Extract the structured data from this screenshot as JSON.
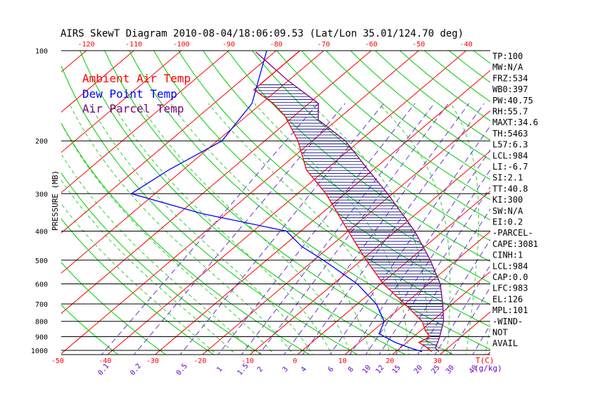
{
  "chart_data": {
    "type": "skewt",
    "title": "AIRS SkewT Diagram 2010-08-04/18:06:09.53 (Lat/Lon 35.01/124.70 deg)",
    "ylabel": "PRESSURE (MB)",
    "bottom_temp_unit": "T(C)",
    "mixing_ratio_unit": "(g/kg)",
    "pressure_levels": [
      100,
      200,
      300,
      400,
      500,
      600,
      700,
      800,
      900,
      1000
    ],
    "pressure_range": [
      100,
      1050
    ],
    "bottom_temp_ticks": [
      -50,
      -40,
      -30,
      -20,
      -10,
      0,
      10,
      20,
      30
    ],
    "top_temp_ticks": [
      -120,
      -110,
      -100,
      -90,
      -80,
      -70,
      -60,
      -50,
      -40
    ],
    "mixing_ratio_labels": [
      "0.1",
      "0.2",
      "0.5",
      "1",
      "1.5",
      "2",
      "3",
      "4",
      "6",
      "8",
      "10",
      "12",
      "15",
      "20",
      "25",
      "30",
      "40"
    ],
    "mixing_ratio_values": [
      0.1,
      0.2,
      0.5,
      1,
      1.5,
      2,
      3,
      4,
      6,
      8,
      10,
      12,
      15,
      20,
      25,
      30,
      40
    ],
    "legend": [
      {
        "label": "Ambient Air Temp",
        "color": "#ff0000"
      },
      {
        "label": "Dew Point Temp",
        "color": "#0000ff"
      },
      {
        "label": "Air Parcel Temp",
        "color": "#800080"
      }
    ],
    "series": [
      {
        "name": "Ambient Air Temp",
        "color": "#ff0000",
        "points": [
          [
            1010,
            27.5
          ],
          [
            985,
            26.0
          ],
          [
            940,
            22.5
          ],
          [
            900,
            23.5
          ],
          [
            860,
            21.0
          ],
          [
            800,
            18.0
          ],
          [
            700,
            10.0
          ],
          [
            600,
            0.5
          ],
          [
            500,
            -9.0
          ],
          [
            400,
            -20.0
          ],
          [
            300,
            -34.0
          ],
          [
            250,
            -44.0
          ],
          [
            200,
            -53.0
          ],
          [
            165,
            -62.0
          ],
          [
            150,
            -67.5
          ],
          [
            135,
            -75.0
          ],
          [
            100,
            -75.0
          ]
        ]
      },
      {
        "name": "Dew Point Temp",
        "color": "#0000ff",
        "points": [
          [
            1010,
            25.5
          ],
          [
            985,
            22.5
          ],
          [
            940,
            17.5
          ],
          [
            880,
            12.0
          ],
          [
            800,
            10.0
          ],
          [
            700,
            4.0
          ],
          [
            600,
            -5.0
          ],
          [
            500,
            -18.0
          ],
          [
            450,
            -26.0
          ],
          [
            400,
            -33.0
          ],
          [
            350,
            -55.0
          ],
          [
            300,
            -75.0
          ],
          [
            250,
            -73.0
          ],
          [
            200,
            -69.0
          ],
          [
            150,
            -72.0
          ],
          [
            100,
            -82.0
          ]
        ]
      },
      {
        "name": "Air Parcel Temp",
        "color": "#800080",
        "points": [
          [
            1010,
            29.0
          ],
          [
            984,
            27.5
          ],
          [
            900,
            25.5
          ],
          [
            800,
            22.5
          ],
          [
            700,
            18.0
          ],
          [
            600,
            12.5
          ],
          [
            500,
            4.5
          ],
          [
            400,
            -6.0
          ],
          [
            300,
            -21.0
          ],
          [
            250,
            -31.0
          ],
          [
            200,
            -43.0
          ],
          [
            170,
            -54.0
          ],
          [
            150,
            -58.0
          ],
          [
            126,
            -70.0
          ],
          [
            101,
            -84.0
          ]
        ]
      }
    ]
  },
  "stats": [
    "TP:100",
    "MW:N/A",
    "FRZ:534",
    "WB0:397",
    "PW:40.75",
    "RH:55.7",
    "MAXT:34.6",
    "TH:5463",
    "L57:6.3",
    "LCL:984",
    "LI:-6.7",
    "SI:2.1",
    "TT:40.8",
    "KI:300",
    "SW:N/A",
    "EI:0.2",
    "-PARCEL-",
    "CAPE:3081",
    "CINH:1",
    "LCL:984",
    "CAP:0.0",
    "LFC:983",
    "EL:126",
    "MPL:101",
    "-WIND-",
    "NOT",
    "AVAIL"
  ],
  "colors": {
    "isotherm": "#ff0000",
    "dry_adiabat": "#00cc00",
    "moist_adiabat": "#33cc33",
    "mixing_ratio": "#6633cc",
    "isobar": "#000000",
    "hatch": "#000080",
    "tick_label_red": "#ff0000",
    "tick_label_purple": "#6600cc"
  }
}
